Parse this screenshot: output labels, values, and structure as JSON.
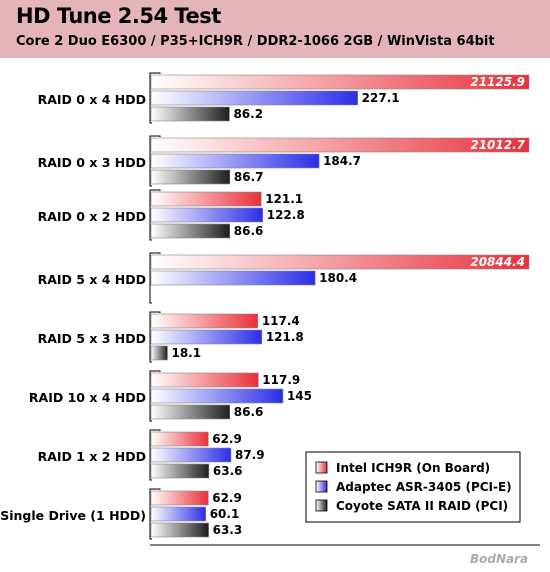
{
  "chart_data": {
    "type": "bar",
    "orientation": "horizontal",
    "title": "HD Tune 2.54 Test",
    "subtitle": "Core 2 Duo E6300 / P35+ICH9R / DDR2-1066 2GB / WinVista 64bit",
    "categories": [
      "RAID 0 x 4 HDD",
      "RAID 0 x 3 HDD",
      "RAID 0 x 2 HDD",
      "RAID 5 x 4 HDD",
      "RAID 5 x 3 HDD",
      "RAID 10 x 4 HDD",
      "RAID 1 x 2 HDD",
      "Single Drive (1 HDD)"
    ],
    "series": [
      {
        "name": "Intel ICH9R (On Board)",
        "color": "#e8303a",
        "values": [
          21125.9,
          21012.7,
          121.1,
          20844.4,
          117.4,
          117.9,
          62.9,
          62.9
        ]
      },
      {
        "name": "Adaptec ASR-3405 (PCI-E)",
        "color": "#2b2ee8",
        "values": [
          227.1,
          184.7,
          122.8,
          180.4,
          121.8,
          145,
          87.9,
          60.1
        ]
      },
      {
        "name": "Coyote SATA II RAID (PCI)",
        "color": "#1e1e1e",
        "values": [
          86.2,
          86.7,
          86.6,
          null,
          18.1,
          86.6,
          63.6,
          63.3
        ]
      }
    ],
    "value_labels": [
      [
        "21125.9",
        "227.1",
        "86.2"
      ],
      [
        "21012.7",
        "184.7",
        "86.7"
      ],
      [
        "121.1",
        "122.8",
        "86.6"
      ],
      [
        "20844.4",
        "180.4",
        ""
      ],
      [
        "117.4",
        "121.8",
        "18.1"
      ],
      [
        "117.9",
        "145",
        "86.6"
      ],
      [
        "62.9",
        "87.9",
        "63.6"
      ],
      [
        "62.9",
        "60.1",
        "63.3"
      ]
    ],
    "axis": {
      "scale": "broken",
      "linear_max": 250,
      "overflow_threshold": 1000
    },
    "grid": false,
    "legend": "bottom-right"
  },
  "watermark": "BodNara"
}
